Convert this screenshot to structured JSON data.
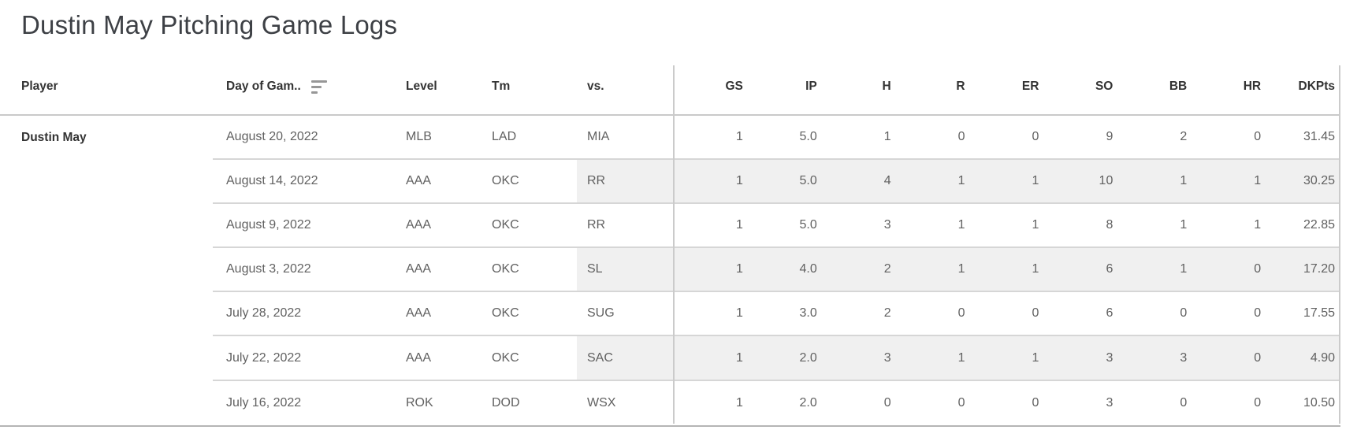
{
  "title": "Dustin May Pitching Game Logs",
  "header": {
    "labels": [
      "Player",
      "Day of Gam..",
      "Level",
      "Tm",
      "vs.",
      "GS",
      "IP",
      "H",
      "R",
      "ER",
      "SO",
      "BB",
      "HR",
      "DKPts"
    ],
    "sort_indicator": {
      "column": "Day of Gam..",
      "direction": "descending",
      "icon": "sort-descending-icon"
    }
  },
  "colors": {
    "row_band": "#f0f0f0",
    "grid_line": "#c9c9c9",
    "row_separator": "#d6d6d6",
    "outer_bottom_border": "#b5b5b5",
    "header_text": "#333333",
    "data_text": "#616161",
    "title_text": "#3d4045",
    "sort_icon": "#979797"
  },
  "chart_data": {
    "type": "table",
    "title": "Dustin May Pitching Game Logs",
    "columns": [
      "Player",
      "Day of Game",
      "Level",
      "Tm",
      "vs.",
      "GS",
      "IP",
      "H",
      "R",
      "ER",
      "SO",
      "BB",
      "HR",
      "DKPts"
    ],
    "player": "Dustin May",
    "rows": [
      {
        "date": "August 20, 2022",
        "level": "MLB",
        "tm": "LAD",
        "vs": "MIA",
        "gs": "1",
        "ip": "5.0",
        "h": "1",
        "r": "0",
        "er": "0",
        "so": "9",
        "bb": "2",
        "hr": "0",
        "dkpts": "31.45"
      },
      {
        "date": "August 14, 2022",
        "level": "AAA",
        "tm": "OKC",
        "vs": "RR",
        "gs": "1",
        "ip": "5.0",
        "h": "4",
        "r": "1",
        "er": "1",
        "so": "10",
        "bb": "1",
        "hr": "1",
        "dkpts": "30.25"
      },
      {
        "date": "August 9, 2022",
        "level": "AAA",
        "tm": "OKC",
        "vs": "RR",
        "gs": "1",
        "ip": "5.0",
        "h": "3",
        "r": "1",
        "er": "1",
        "so": "8",
        "bb": "1",
        "hr": "1",
        "dkpts": "22.85"
      },
      {
        "date": "August 3, 2022",
        "level": "AAA",
        "tm": "OKC",
        "vs": "SL",
        "gs": "1",
        "ip": "4.0",
        "h": "2",
        "r": "1",
        "er": "1",
        "so": "6",
        "bb": "1",
        "hr": "0",
        "dkpts": "17.20"
      },
      {
        "date": "July 28, 2022",
        "level": "AAA",
        "tm": "OKC",
        "vs": "SUG",
        "gs": "1",
        "ip": "3.0",
        "h": "2",
        "r": "0",
        "er": "0",
        "so": "6",
        "bb": "0",
        "hr": "0",
        "dkpts": "17.55"
      },
      {
        "date": "July 22, 2022",
        "level": "AAA",
        "tm": "OKC",
        "vs": "SAC",
        "gs": "1",
        "ip": "2.0",
        "h": "3",
        "r": "1",
        "er": "1",
        "so": "3",
        "bb": "3",
        "hr": "0",
        "dkpts": "4.90"
      },
      {
        "date": "July 16, 2022",
        "level": "ROK",
        "tm": "DOD",
        "vs": "WSX",
        "gs": "1",
        "ip": "2.0",
        "h": "0",
        "r": "0",
        "er": "0",
        "so": "3",
        "bb": "0",
        "hr": "0",
        "dkpts": "10.50"
      }
    ]
  }
}
